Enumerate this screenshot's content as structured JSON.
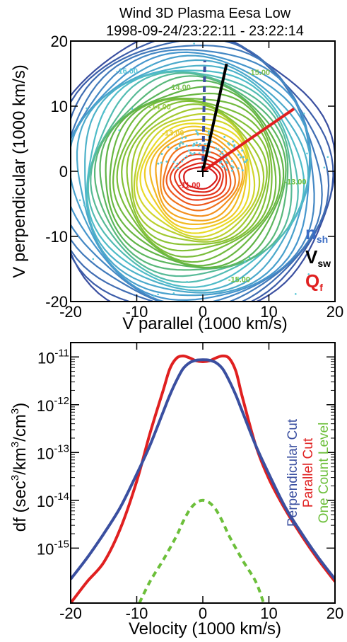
{
  "chart_data": [
    {
      "type": "contour",
      "title_line1": "Wind 3D Plasma Eesa Low",
      "title_line2": "1998-09-24/23:22:11 - 23:22:14",
      "xlabel": "V parallel (1000 km/s)",
      "ylabel": "V perpendicular (1000 km/s)",
      "xlim": [
        -20,
        20
      ],
      "ylim": [
        -20,
        20
      ],
      "xticks": [
        "-20",
        "-10",
        "0",
        "10",
        "20"
      ],
      "yticks": [
        "20",
        "10",
        "0",
        "-10",
        "-20"
      ],
      "contour_level_labels": [
        "-16.00",
        "-15.00",
        "-14.00",
        "-14.00",
        "-13.00",
        "-11.00",
        "-13.00",
        "-15.00"
      ],
      "contour_levels_log10": [
        -16.0,
        -15.5,
        -15.0,
        -14.5,
        -14.0,
        -13.5,
        -13.0,
        -12.5,
        -12.0,
        -11.5,
        -11.0
      ],
      "vectors": [
        {
          "name": "n_sh",
          "color": "#3a4fa0",
          "style": "dashed",
          "x": 0.3,
          "y": 17.0
        },
        {
          "name": "V_sw",
          "color": "#000000",
          "style": "solid",
          "x": 3.6,
          "y": 16.5
        },
        {
          "name": "Q_f",
          "color": "#e02020",
          "style": "solid",
          "x": 13.8,
          "y": 9.6
        }
      ],
      "legend": [
        {
          "main": "n",
          "sub": "sh",
          "color": "#3a6cc4"
        },
        {
          "main": "V",
          "sub": "sw",
          "color": "#000000"
        },
        {
          "main": "Q",
          "sub": "f",
          "color": "#e02020"
        }
      ]
    },
    {
      "type": "line",
      "xlabel": "Velocity (1000 km/s)",
      "ylabel": "df (sec",
      "ylabel_sup1": "3",
      "ylabel_mid": "/km",
      "ylabel_sup2": "3",
      "ylabel_mid2": "/cm",
      "ylabel_sup3": "3",
      "ylabel_end": ")",
      "xlim": [
        -20,
        20
      ],
      "ylim_log10": [
        -16.15,
        -10.7
      ],
      "xticks": [
        "-20",
        "-10",
        "0",
        "10",
        "20"
      ],
      "yticks": [
        {
          "base": "10",
          "exp": "-11",
          "value": -11
        },
        {
          "base": "10",
          "exp": "-12",
          "value": -12
        },
        {
          "base": "10",
          "exp": "-13",
          "value": -13
        },
        {
          "base": "10",
          "exp": "-14",
          "value": -14
        },
        {
          "base": "10",
          "exp": "-15",
          "value": -15
        }
      ],
      "legend": [
        {
          "name": "Perpendicular Cut",
          "color": "#3a4fa0"
        },
        {
          "name": "Parallel Cut",
          "color": "#e02020"
        },
        {
          "name": "One Count Level",
          "color": "#6cbf3a"
        }
      ],
      "series": [
        {
          "name": "Perpendicular Cut",
          "color": "#3a4fa0",
          "style": "solid",
          "x": [
            -20,
            -17.5,
            -15,
            -12.5,
            -10,
            -8,
            -6,
            -5,
            -4,
            -3,
            -2,
            -1,
            0,
            1,
            2,
            3,
            4,
            5,
            6,
            8,
            10,
            12.5,
            15,
            17.5,
            20
          ],
          "log10y": [
            -15.65,
            -15.2,
            -14.7,
            -14.15,
            -13.45,
            -12.85,
            -12.15,
            -11.8,
            -11.5,
            -11.25,
            -11.12,
            -11.07,
            -11.06,
            -11.07,
            -11.12,
            -11.25,
            -11.5,
            -11.8,
            -12.15,
            -12.85,
            -13.45,
            -14.15,
            -14.7,
            -15.2,
            -15.65
          ]
        },
        {
          "name": "Parallel Cut",
          "color": "#e02020",
          "style": "solid",
          "x": [
            -20,
            -17.5,
            -15,
            -12.5,
            -10,
            -8,
            -6,
            -5,
            -4,
            -3,
            -2,
            -1,
            0,
            1,
            2,
            3,
            4,
            5,
            6,
            8,
            10,
            12.5,
            15,
            17.5,
            20
          ],
          "log10y": [
            -16.15,
            -15.7,
            -15.3,
            -14.6,
            -13.6,
            -12.6,
            -11.7,
            -11.25,
            -11.03,
            -10.98,
            -11.02,
            -11.08,
            -11.1,
            -11.08,
            -11.02,
            -10.98,
            -11.03,
            -11.3,
            -11.85,
            -12.85,
            -13.55,
            -14.2,
            -14.75,
            -15.25,
            -15.7
          ]
        },
        {
          "name": "One Count Level",
          "color": "#6cbf3a",
          "style": "dashed",
          "x": [
            -9.6,
            -8,
            -6,
            -4,
            -3,
            -2,
            -1,
            0,
            1,
            2,
            3,
            4,
            6,
            8,
            9.2
          ],
          "log10y": [
            -16.15,
            -15.7,
            -15.25,
            -14.75,
            -14.45,
            -14.2,
            -14.05,
            -14.0,
            -14.05,
            -14.2,
            -14.45,
            -14.75,
            -15.25,
            -15.7,
            -16.15
          ]
        }
      ]
    }
  ]
}
